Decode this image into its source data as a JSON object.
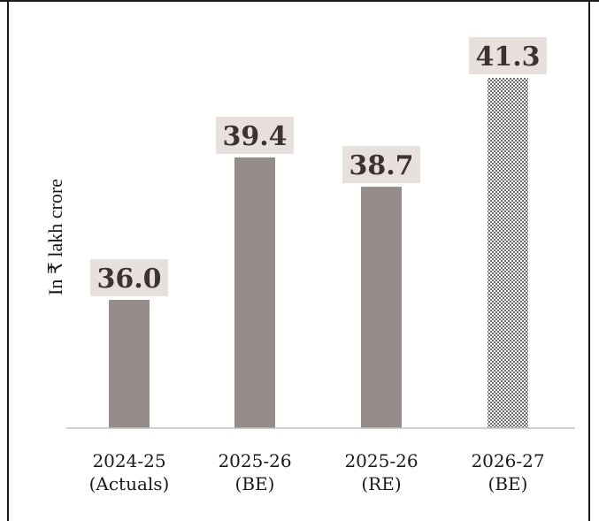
{
  "chart_data": {
    "type": "bar",
    "categories": [
      [
        "2024-25",
        "(Actuals)"
      ],
      [
        "2025-26",
        "(BE)"
      ],
      [
        "2025-26",
        "(RE)"
      ],
      [
        "2026-27",
        "(BE)"
      ]
    ],
    "values": [
      36.0,
      39.4,
      38.7,
      41.3
    ],
    "value_labels": [
      "36.0",
      "39.4",
      "38.7",
      "41.3"
    ],
    "ylabel": "In ₹ lakh crore",
    "xlabel": "",
    "title": "",
    "ylim": [
      0,
      42
    ],
    "grid": false,
    "legend": "none",
    "bar_styles": [
      "solid",
      "solid",
      "solid",
      "checkered"
    ]
  },
  "colors": {
    "bar": "#968c8a",
    "label_bg": "#e8e0dc",
    "label_text": "#3a3334",
    "axis": "#bfbfbf",
    "frame": "#1a1a1a",
    "checker_dark": "#6e6868",
    "checker_light": "#ffffff"
  }
}
